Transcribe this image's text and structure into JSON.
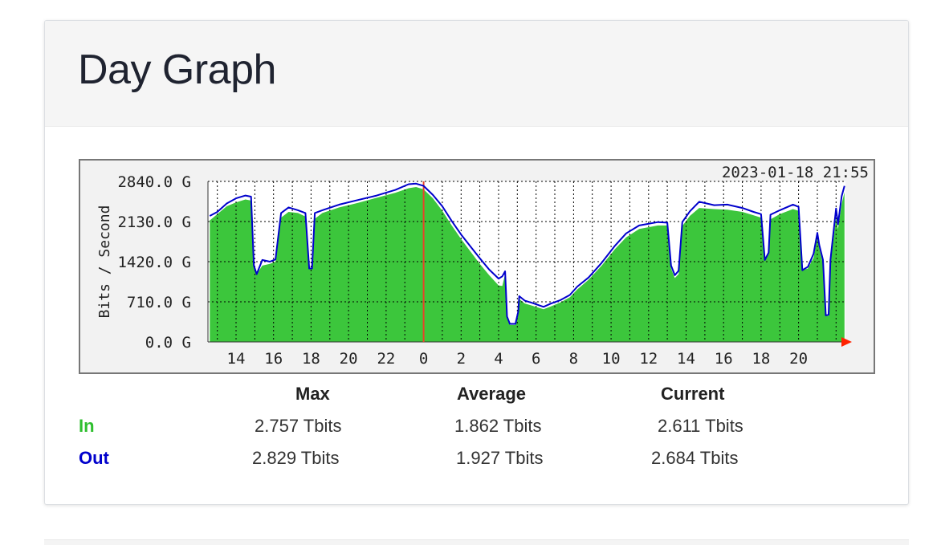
{
  "panel": {
    "title": "Day Graph"
  },
  "chart_data": {
    "type": "area",
    "timestamp_label": "2023-01-18 21:55",
    "ylabel": "Bits / Second",
    "yticks": [
      "0.0 G",
      "710.0 G",
      "1420.0 G",
      "2130.0 G",
      "2840.0 G"
    ],
    "ytick_values": [
      0,
      710,
      1420,
      2130,
      2840
    ],
    "ylim": [
      0,
      2840
    ],
    "xlim": [
      12.5,
      46.5
    ],
    "xticks": [
      "14",
      "16",
      "18",
      "20",
      "22",
      "0",
      "2",
      "4",
      "6",
      "8",
      "10",
      "12",
      "14",
      "16",
      "18",
      "20"
    ],
    "xtick_hours": [
      14,
      16,
      18,
      20,
      22,
      24,
      26,
      28,
      30,
      32,
      34,
      36,
      38,
      40,
      42,
      44
    ],
    "day_boundary_hour": 24,
    "grid": true,
    "colors": {
      "in_fill": "#3cc63c",
      "out_line": "#0000cc",
      "day_boundary": "#e8432a",
      "grid": "#000000",
      "arrow": "#ff2200",
      "plot_bg": "#ffffff",
      "frame_bg": "#f2f2f2"
    },
    "series": [
      {
        "name": "In",
        "points": [
          [
            12.6,
            2150
          ],
          [
            13,
            2260
          ],
          [
            13.5,
            2400
          ],
          [
            14,
            2470
          ],
          [
            14.5,
            2520
          ],
          [
            14.8,
            2500
          ],
          [
            14.95,
            1350
          ],
          [
            15.1,
            1200
          ],
          [
            15.4,
            1350
          ],
          [
            15.8,
            1380
          ],
          [
            16.1,
            1420
          ],
          [
            16.4,
            2200
          ],
          [
            16.8,
            2300
          ],
          [
            17.3,
            2280
          ],
          [
            17.7,
            2220
          ],
          [
            17.9,
            1300
          ],
          [
            18.05,
            1300
          ],
          [
            18.2,
            2180
          ],
          [
            18.6,
            2280
          ],
          [
            19.5,
            2380
          ],
          [
            20.5,
            2460
          ],
          [
            21.5,
            2550
          ],
          [
            22.5,
            2640
          ],
          [
            23.2,
            2720
          ],
          [
            23.6,
            2740
          ],
          [
            24,
            2700
          ],
          [
            24.5,
            2540
          ],
          [
            25,
            2320
          ],
          [
            25.5,
            2060
          ],
          [
            26,
            1820
          ],
          [
            26.5,
            1600
          ],
          [
            27,
            1380
          ],
          [
            27.5,
            1180
          ],
          [
            28,
            1000
          ],
          [
            28.2,
            990
          ],
          [
            28.35,
            1200
          ],
          [
            28.45,
            450
          ],
          [
            28.6,
            300
          ],
          [
            28.9,
            300
          ],
          [
            29.05,
            500
          ],
          [
            29.1,
            760
          ],
          [
            29.4,
            680
          ],
          [
            29.8,
            640
          ],
          [
            30.4,
            580
          ],
          [
            30.8,
            630
          ],
          [
            31.3,
            700
          ],
          [
            31.8,
            790
          ],
          [
            32.2,
            930
          ],
          [
            32.8,
            1100
          ],
          [
            33.5,
            1350
          ],
          [
            34.2,
            1640
          ],
          [
            34.8,
            1850
          ],
          [
            35.5,
            2000
          ],
          [
            36.5,
            2060
          ],
          [
            37,
            2060
          ],
          [
            37.2,
            1300
          ],
          [
            37.4,
            1130
          ],
          [
            37.6,
            1200
          ],
          [
            37.8,
            2050
          ],
          [
            38.2,
            2230
          ],
          [
            38.7,
            2370
          ],
          [
            39.5,
            2350
          ],
          [
            40.2,
            2340
          ],
          [
            41,
            2300
          ],
          [
            41.6,
            2240
          ],
          [
            42,
            2200
          ],
          [
            42.2,
            1450
          ],
          [
            42.4,
            1550
          ],
          [
            42.5,
            2170
          ],
          [
            43,
            2260
          ],
          [
            43.7,
            2350
          ],
          [
            44,
            2320
          ],
          [
            44.2,
            1270
          ],
          [
            44.5,
            1300
          ],
          [
            44.8,
            1490
          ],
          [
            45,
            1850
          ],
          [
            45.1,
            1660
          ],
          [
            45.3,
            1380
          ],
          [
            45.45,
            470
          ],
          [
            45.6,
            460
          ],
          [
            45.7,
            1380
          ],
          [
            46,
            2200
          ],
          [
            46.1,
            2000
          ],
          [
            46.3,
            2440
          ],
          [
            46.45,
            2650
          ]
        ]
      },
      {
        "name": "Out",
        "points": [
          [
            12.6,
            2230
          ],
          [
            13,
            2300
          ],
          [
            13.5,
            2450
          ],
          [
            14,
            2540
          ],
          [
            14.5,
            2590
          ],
          [
            14.8,
            2570
          ],
          [
            14.95,
            1350
          ],
          [
            15.1,
            1200
          ],
          [
            15.4,
            1450
          ],
          [
            15.8,
            1420
          ],
          [
            16.1,
            1460
          ],
          [
            16.4,
            2280
          ],
          [
            16.8,
            2380
          ],
          [
            17.3,
            2330
          ],
          [
            17.7,
            2280
          ],
          [
            17.9,
            1300
          ],
          [
            18.05,
            1300
          ],
          [
            18.2,
            2280
          ],
          [
            18.6,
            2330
          ],
          [
            19.5,
            2430
          ],
          [
            20.5,
            2510
          ],
          [
            21.5,
            2590
          ],
          [
            22.5,
            2690
          ],
          [
            23.2,
            2790
          ],
          [
            23.6,
            2800
          ],
          [
            24,
            2760
          ],
          [
            24.5,
            2600
          ],
          [
            25,
            2400
          ],
          [
            25.5,
            2140
          ],
          [
            26,
            1900
          ],
          [
            26.5,
            1690
          ],
          [
            27,
            1480
          ],
          [
            27.5,
            1280
          ],
          [
            28,
            1120
          ],
          [
            28.2,
            1160
          ],
          [
            28.35,
            1250
          ],
          [
            28.45,
            450
          ],
          [
            28.6,
            320
          ],
          [
            28.9,
            320
          ],
          [
            29.05,
            540
          ],
          [
            29.1,
            810
          ],
          [
            29.4,
            730
          ],
          [
            29.8,
            690
          ],
          [
            30.4,
            620
          ],
          [
            30.8,
            680
          ],
          [
            31.3,
            740
          ],
          [
            31.8,
            830
          ],
          [
            32.2,
            980
          ],
          [
            32.8,
            1140
          ],
          [
            33.5,
            1400
          ],
          [
            34.2,
            1700
          ],
          [
            34.8,
            1920
          ],
          [
            35.5,
            2060
          ],
          [
            36.5,
            2120
          ],
          [
            37,
            2110
          ],
          [
            37.2,
            1350
          ],
          [
            37.4,
            1180
          ],
          [
            37.6,
            1260
          ],
          [
            37.8,
            2120
          ],
          [
            38.2,
            2310
          ],
          [
            38.7,
            2480
          ],
          [
            39.5,
            2420
          ],
          [
            40.2,
            2430
          ],
          [
            41,
            2370
          ],
          [
            41.6,
            2300
          ],
          [
            42,
            2260
          ],
          [
            42.2,
            1450
          ],
          [
            42.4,
            1580
          ],
          [
            42.5,
            2250
          ],
          [
            43,
            2330
          ],
          [
            43.7,
            2430
          ],
          [
            44,
            2390
          ],
          [
            44.2,
            1270
          ],
          [
            44.5,
            1330
          ],
          [
            44.8,
            1560
          ],
          [
            45,
            1930
          ],
          [
            45.1,
            1720
          ],
          [
            45.3,
            1450
          ],
          [
            45.45,
            470
          ],
          [
            45.6,
            480
          ],
          [
            45.7,
            1450
          ],
          [
            46,
            2360
          ],
          [
            46.1,
            2080
          ],
          [
            46.3,
            2580
          ],
          [
            46.45,
            2760
          ]
        ]
      }
    ]
  },
  "stats": {
    "headers": [
      "Max",
      "Average",
      "Current"
    ],
    "rows": [
      {
        "label": "In",
        "max": "2.757 Tbits",
        "average": "1.862 Tbits",
        "current": "2.611 Tbits"
      },
      {
        "label": "Out",
        "max": "2.829 Tbits",
        "average": "1.927 Tbits",
        "current": "2.684 Tbits"
      }
    ]
  }
}
